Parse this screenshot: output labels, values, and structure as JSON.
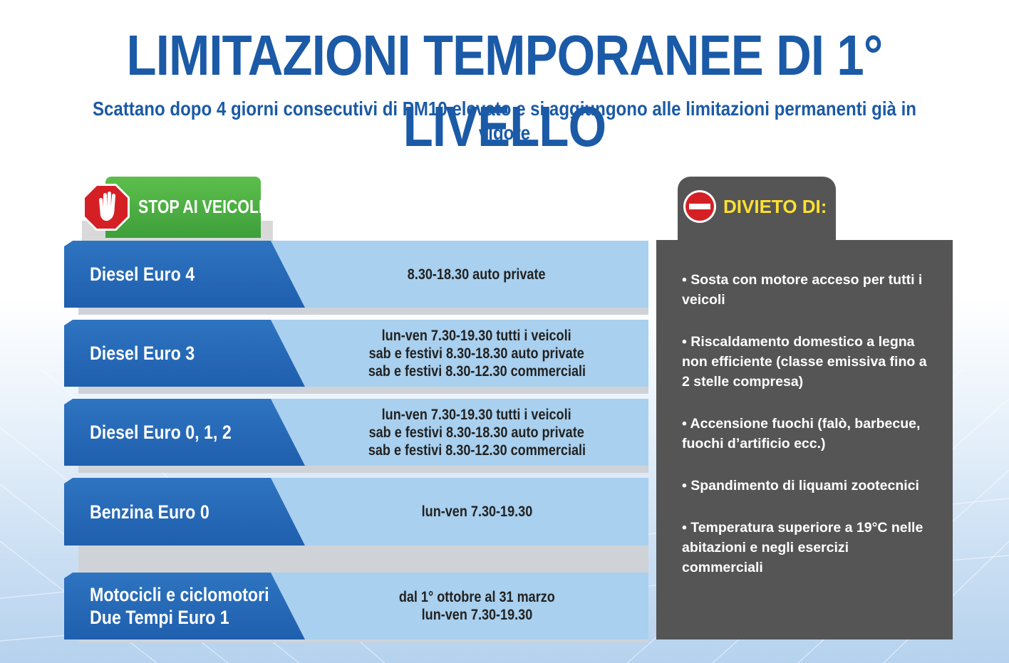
{
  "title": "LIMITAZIONI TEMPORANEE DI 1° LIVELLO",
  "subtitle": "Scattano dopo 4 giorni consecutivi di PM10 elevato e si aggiungono alle limitazioni permanenti già in vigore",
  "stop_section": {
    "label": "STOP AI VEICOLI",
    "icon": "stop-hand-icon",
    "color": "#4cb148",
    "rows": [
      {
        "vehicle": "Diesel Euro 4",
        "lines": [
          "8.30-18.30 auto private"
        ]
      },
      {
        "vehicle": "Diesel Euro 3",
        "lines": [
          "lun-ven 7.30-19.30 tutti i veicoli",
          "sab e festivi 8.30-18.30 auto private",
          "sab e festivi 8.30-12.30 commerciali"
        ]
      },
      {
        "vehicle": "Diesel Euro 0, 1, 2",
        "lines": [
          "lun-ven 7.30-19.30 tutti i veicoli",
          "sab e festivi 8.30-18.30 auto private",
          "sab e festivi 8.30-12.30 commerciali"
        ]
      },
      {
        "vehicle": "Benzina Euro 0",
        "lines": [
          "lun-ven 7.30-19.30"
        ]
      },
      {
        "vehicle": "Motocicli e ciclomotori",
        "vehicle2": "Due Tempi Euro 1",
        "lines": [
          "dal 1° ottobre al 31 marzo",
          "lun-ven 7.30-19.30"
        ]
      }
    ]
  },
  "ban_section": {
    "label": "DIVIETO DI:",
    "icon": "no-entry-icon",
    "label_color": "#ffe12e",
    "items": [
      "• Sosta con motore acceso per tutti i veicoli",
      "• Riscaldamento domestico a legna non efficiente (classe emissiva fino a 2 stelle compresa)",
      "• Accensione fuochi (falò, barbecue, fuochi d’artificio ecc.)",
      "• Spandimento di liquami zootecnici",
      "• Temperatura superiore a 19°C nelle abitazioni e negli esercizi commerciali"
    ]
  }
}
